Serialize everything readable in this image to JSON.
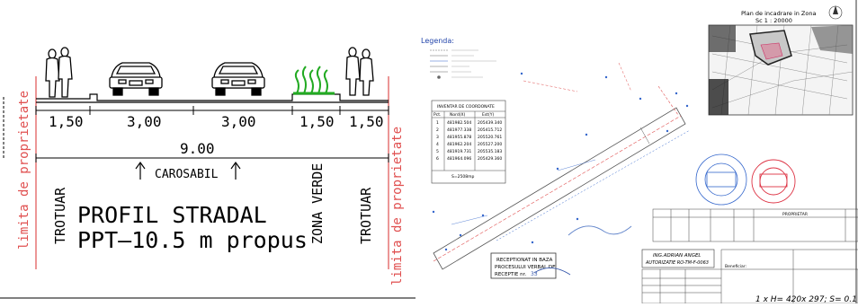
{
  "left": {
    "dims": [
      "1,50",
      "3,00",
      "3,00",
      "1,50",
      "1,50"
    ],
    "total": "9.00",
    "carosabil": "CAROSABIL",
    "vert_left_red": "limita de proprietate",
    "vert_right_red": "limita de proprietate",
    "trotuar_left": "TROTUAR",
    "trotuar_right": "TROTUAR",
    "zona_verde": "ZONA VERDE",
    "title_line1": "PROFIL STRADAL",
    "title_line2": "PPT—10.5 m propus"
  },
  "right": {
    "legend_title": "Legenda:",
    "coord_table_title": "INVENTAR DE COORDONATE",
    "coord_headers": [
      "Pct.",
      "Nord(X)",
      "Est(Y)"
    ],
    "coord_rows": [
      [
        "1",
        "481982.504",
        "205439.340"
      ],
      [
        "2",
        "481977.338",
        "205415.712"
      ],
      [
        "3",
        "481955.878",
        "205520.761"
      ],
      [
        "4",
        "481962.204",
        "205527.200"
      ],
      [
        "5",
        "481919.731",
        "205535.183"
      ],
      [
        "6",
        "481964.096",
        "205429.360"
      ]
    ],
    "coord_area": "S=2508mp",
    "plan_title": "Plan de incadrare in Zona",
    "plan_scale": "Sc 1 : 20000",
    "stamp_receptie_1": "RECEPTIONAT IN BAZA",
    "stamp_receptie_2": "PROCESULUI VERBAL DE",
    "stamp_receptie_3": "RECEPTIE nr.",
    "stamp_receptie_num": "33",
    "engineer_1": "ING.ADRIAN ANGEL",
    "engineer_2": "AUTORIZATIE RO-TM-F-0063",
    "proprietar_label": "PROPRIETAR",
    "beneficiar": "Beneficiar:",
    "scale_label": "1 x H= 420x 297; S= 0.1"
  }
}
